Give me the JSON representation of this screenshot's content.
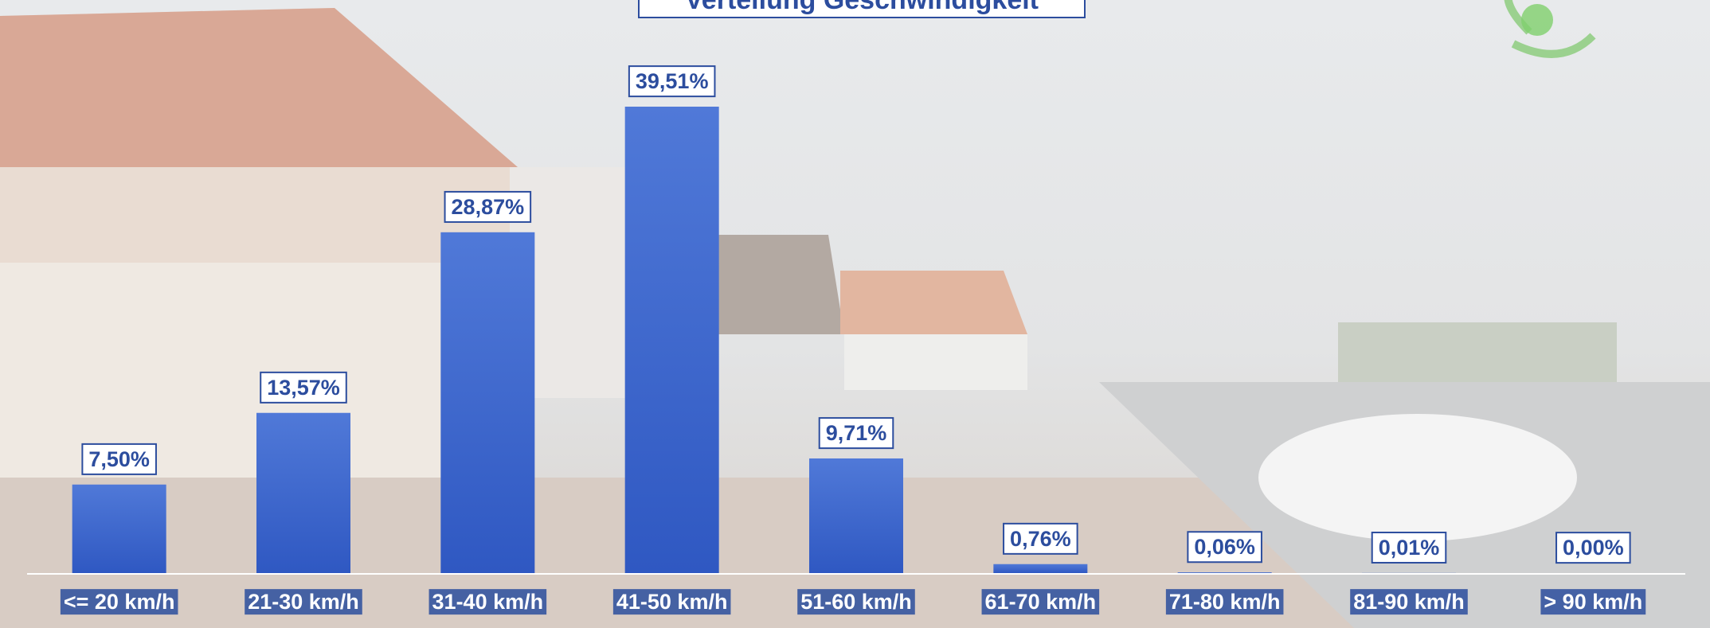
{
  "chart_data": {
    "type": "bar",
    "title": "Verteilung Geschwindigkeit",
    "categories": [
      "<= 20 km/h",
      "21-30 km/h",
      "31-40 km/h",
      "41-50 km/h",
      "51-60 km/h",
      "61-70 km/h",
      "71-80 km/h",
      "81-90 km/h",
      "> 90 km/h"
    ],
    "values": [
      7.5,
      13.57,
      28.87,
      39.51,
      9.71,
      0.76,
      0.06,
      0.01,
      0.0
    ],
    "value_labels": [
      "7,50%",
      "13,57%",
      "28,87%",
      "39,51%",
      "9,71%",
      "0,76%",
      "0,06%",
      "0,01%",
      "0,00%"
    ],
    "color": "#3a63cc"
  }
}
